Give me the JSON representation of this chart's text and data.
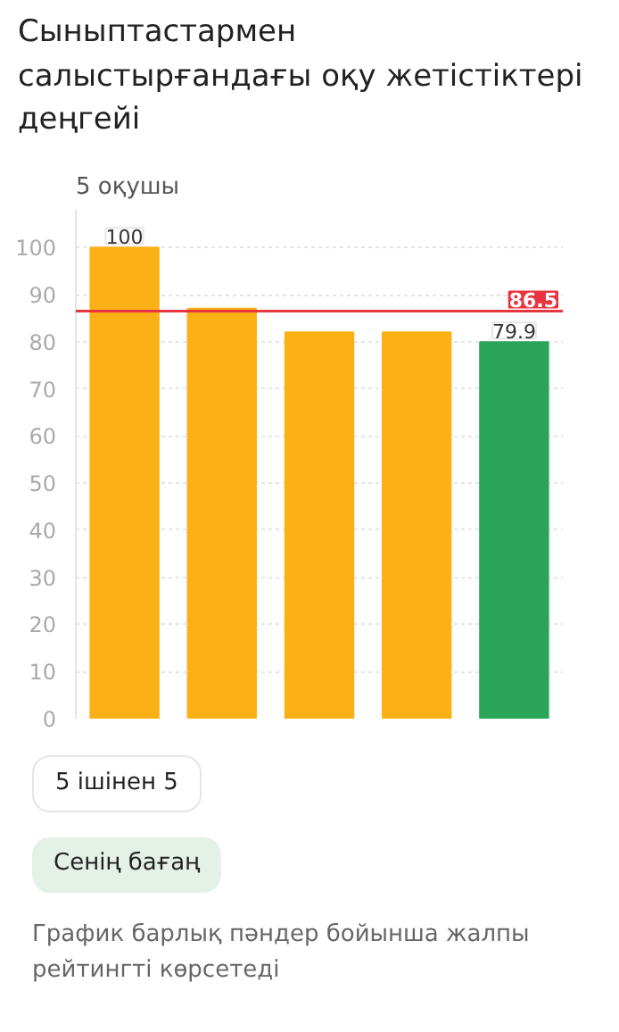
{
  "chart_data": {
    "type": "bar",
    "title": "Сыныптастармен салыстырғандағы оқу жетістіктері деңгейі",
    "subtitle": "5 оқушы",
    "categories": [
      null,
      null,
      null,
      null,
      null
    ],
    "values": [
      100,
      87,
      82,
      82,
      79.9
    ],
    "colors": [
      "#fbb116",
      "#fbb116",
      "#fbb116",
      "#fbb116",
      "#2aa55a"
    ],
    "value_labels": [
      "100",
      null,
      null,
      null,
      "79.9"
    ],
    "ylim": [
      0,
      108
    ],
    "yticks": [
      0,
      10,
      20,
      30,
      40,
      50,
      60,
      70,
      80,
      90,
      100
    ],
    "grid": "y",
    "tick_labels": "y",
    "ref_lines": [
      {
        "axis": "y",
        "value": 86.5,
        "label": "86.5",
        "color": "#e8343f"
      }
    ],
    "annotations": [
      "5 ішінен 5",
      "Сенің бағаң",
      "График барлық пәндер бойынша жалпы рейтингті көрсетеді"
    ]
  }
}
